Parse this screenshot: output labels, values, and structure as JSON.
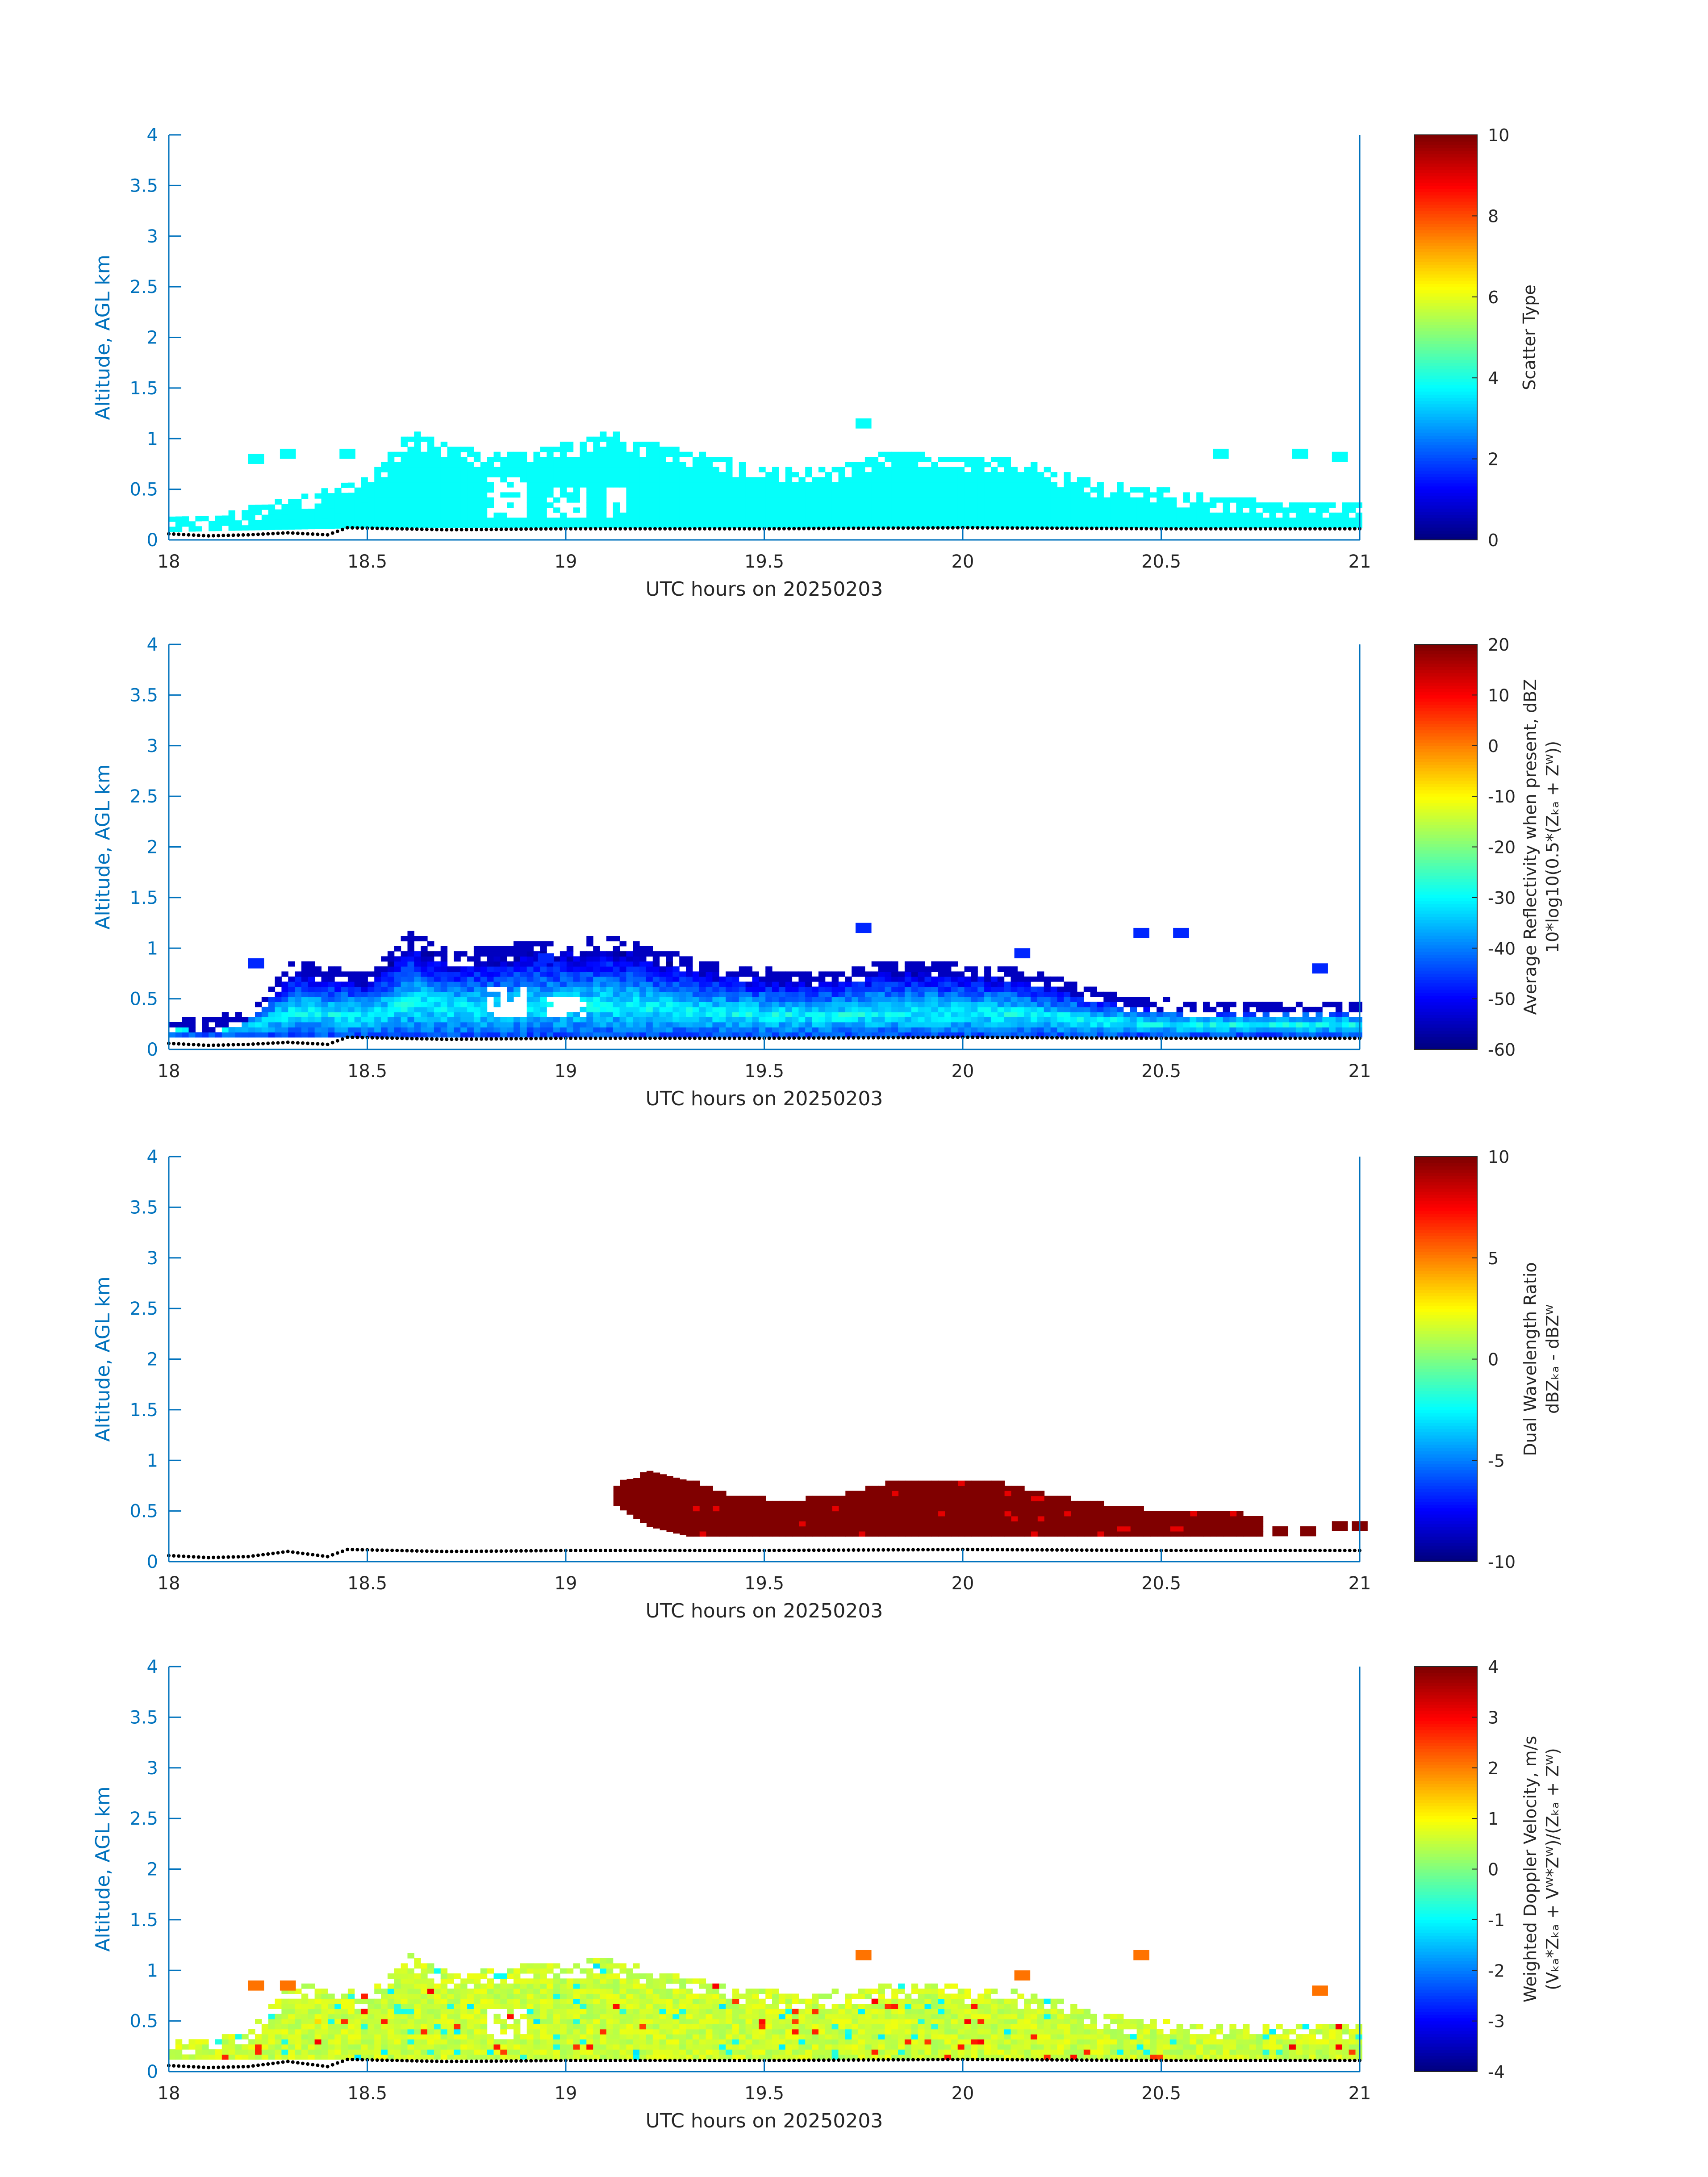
{
  "colors": {
    "axis": "#0072bd",
    "tick_text": "#0072bd",
    "label_text": "#262626",
    "ground_dots": "#000000",
    "colormap": "jet"
  },
  "chart_data": [
    {
      "type": "heatmap",
      "panel": "scatter-type",
      "xlabel": "UTC hours on 20250203",
      "ylabel": "Altitude, AGL km",
      "xlim": [
        18,
        21
      ],
      "ylim": [
        0,
        4
      ],
      "xticks": [
        "18",
        "18.5",
        "19",
        "19.5",
        "20",
        "20.5",
        "21"
      ],
      "yticks": [
        "0",
        "0.5",
        "1",
        "1.5",
        "2",
        "2.5",
        "3",
        "3.5",
        "4"
      ],
      "colorbar": {
        "label_lines": [
          "Scatter Type"
        ],
        "clim": [
          0,
          10
        ],
        "ticks": [
          "0",
          "2",
          "4",
          "6",
          "8",
          "10"
        ]
      },
      "field": {
        "mode": "constant",
        "value": 3.8,
        "note_value_units": "scatter type",
        "envelope_top": [
          [
            18.0,
            0.22
          ],
          [
            18.1,
            0.2
          ],
          [
            18.2,
            0.3
          ],
          [
            18.3,
            0.4
          ],
          [
            18.4,
            0.48
          ],
          [
            18.5,
            0.6
          ],
          [
            18.6,
            1.05
          ],
          [
            18.7,
            0.9
          ],
          [
            18.8,
            0.85
          ],
          [
            18.9,
            0.85
          ],
          [
            19.0,
            0.95
          ],
          [
            19.1,
            1.05
          ],
          [
            19.2,
            0.95
          ],
          [
            19.3,
            0.85
          ],
          [
            19.4,
            0.78
          ],
          [
            19.5,
            0.72
          ],
          [
            19.6,
            0.7
          ],
          [
            19.7,
            0.72
          ],
          [
            19.8,
            0.85
          ],
          [
            19.9,
            0.85
          ],
          [
            20.0,
            0.8
          ],
          [
            20.1,
            0.78
          ],
          [
            20.2,
            0.7
          ],
          [
            20.3,
            0.58
          ],
          [
            20.4,
            0.52
          ],
          [
            20.5,
            0.48
          ],
          [
            20.6,
            0.42
          ],
          [
            20.7,
            0.38
          ],
          [
            20.8,
            0.35
          ],
          [
            20.9,
            0.35
          ],
          [
            21.0,
            0.35
          ]
        ],
        "envelope_bottom": [
          [
            18.0,
            0.08
          ],
          [
            18.5,
            0.12
          ],
          [
            19.0,
            0.12
          ],
          [
            19.5,
            0.12
          ],
          [
            20.0,
            0.12
          ],
          [
            20.5,
            0.12
          ],
          [
            21.0,
            0.12
          ]
        ],
        "isolated_patches": [
          [
            19.75,
            1.15
          ],
          [
            18.22,
            0.8
          ],
          [
            18.3,
            0.85
          ],
          [
            18.45,
            0.85
          ],
          [
            20.65,
            0.85
          ],
          [
            20.85,
            0.85
          ],
          [
            20.95,
            0.82
          ]
        ],
        "gap_regions": [
          [
            18.8,
            18.9,
            0.2,
            0.6
          ],
          [
            18.95,
            19.05,
            0.2,
            0.5
          ],
          [
            19.1,
            19.15,
            0.2,
            0.5
          ]
        ]
      },
      "ground_dots_altitude": [
        [
          18.0,
          0.06
        ],
        [
          18.1,
          0.04
        ],
        [
          18.2,
          0.05
        ],
        [
          18.3,
          0.07
        ],
        [
          18.4,
          0.05
        ],
        [
          18.45,
          0.12
        ],
        [
          18.7,
          0.1
        ],
        [
          19.0,
          0.11
        ],
        [
          19.5,
          0.11
        ],
        [
          20.0,
          0.12
        ],
        [
          20.5,
          0.11
        ],
        [
          21.0,
          0.11
        ]
      ]
    },
    {
      "type": "heatmap",
      "panel": "average-reflectivity",
      "xlabel": "UTC hours on 20250203",
      "ylabel": "Altitude, AGL km",
      "xlim": [
        18,
        21
      ],
      "ylim": [
        0,
        4
      ],
      "xticks": [
        "18",
        "18.5",
        "19",
        "19.5",
        "20",
        "20.5",
        "21"
      ],
      "yticks": [
        "0",
        "0.5",
        "1",
        "1.5",
        "2",
        "2.5",
        "3",
        "3.5",
        "4"
      ],
      "colorbar": {
        "label_lines": [
          "Average Reflectivity when present, dBZ",
          "10*log10(0.5*(Zₖₐ + Zᵂ))"
        ],
        "clim": [
          -60,
          20
        ],
        "ticks": [
          "-60",
          "-50",
          "-40",
          "-30",
          "-20",
          "-10",
          "0",
          "10",
          "20"
        ]
      },
      "field": {
        "mode": "gradient",
        "low_value": -55,
        "mid_value": -35,
        "peak_value": -30,
        "note_value_units": "dBZ",
        "envelope_top": [
          [
            18.0,
            0.3
          ],
          [
            18.1,
            0.28
          ],
          [
            18.2,
            0.4
          ],
          [
            18.3,
            0.85
          ],
          [
            18.4,
            0.8
          ],
          [
            18.5,
            0.75
          ],
          [
            18.6,
            1.15
          ],
          [
            18.7,
            0.95
          ],
          [
            18.8,
            0.98
          ],
          [
            18.9,
            1.05
          ],
          [
            19.0,
            1.05
          ],
          [
            19.1,
            1.1
          ],
          [
            19.2,
            1.0
          ],
          [
            19.3,
            0.9
          ],
          [
            19.4,
            0.82
          ],
          [
            19.5,
            0.78
          ],
          [
            19.6,
            0.75
          ],
          [
            19.7,
            0.78
          ],
          [
            19.8,
            0.85
          ],
          [
            19.9,
            0.85
          ],
          [
            20.0,
            0.82
          ],
          [
            20.1,
            0.8
          ],
          [
            20.2,
            0.72
          ],
          [
            20.3,
            0.6
          ],
          [
            20.4,
            0.52
          ],
          [
            20.5,
            0.48
          ],
          [
            20.6,
            0.45
          ],
          [
            20.7,
            0.45
          ],
          [
            20.8,
            0.45
          ],
          [
            20.9,
            0.45
          ],
          [
            21.0,
            0.45
          ]
        ],
        "envelope_bottom": [
          [
            18.0,
            0.12
          ],
          [
            18.5,
            0.12
          ],
          [
            19.0,
            0.12
          ],
          [
            19.5,
            0.12
          ],
          [
            20.0,
            0.12
          ],
          [
            20.5,
            0.12
          ],
          [
            21.0,
            0.12
          ]
        ],
        "isolated_patches": [
          [
            19.75,
            1.2
          ],
          [
            18.22,
            0.85
          ],
          [
            18.95,
            0.9
          ],
          [
            20.15,
            0.95
          ],
          [
            20.45,
            1.15
          ],
          [
            20.55,
            1.15
          ],
          [
            20.9,
            0.8
          ]
        ],
        "gap_regions": [
          [
            18.8,
            18.9,
            0.3,
            0.6
          ],
          [
            18.95,
            19.05,
            0.3,
            0.5
          ]
        ]
      },
      "ground_dots_altitude": [
        [
          18.0,
          0.06
        ],
        [
          18.1,
          0.04
        ],
        [
          18.2,
          0.05
        ],
        [
          18.3,
          0.07
        ],
        [
          18.4,
          0.05
        ],
        [
          18.45,
          0.12
        ],
        [
          18.7,
          0.1
        ],
        [
          19.0,
          0.11
        ],
        [
          19.5,
          0.11
        ],
        [
          20.0,
          0.12
        ],
        [
          20.5,
          0.11
        ],
        [
          21.0,
          0.11
        ]
      ]
    },
    {
      "type": "heatmap",
      "panel": "dual-wavelength-ratio",
      "xlabel": "UTC hours on 20250203",
      "ylabel": "Altitude, AGL km",
      "xlim": [
        18,
        21
      ],
      "ylim": [
        0,
        4
      ],
      "xticks": [
        "18",
        "18.5",
        "19",
        "19.5",
        "20",
        "20.5",
        "21"
      ],
      "yticks": [
        "0",
        "0.5",
        "1",
        "1.5",
        "2",
        "2.5",
        "3",
        "3.5",
        "4"
      ],
      "colorbar": {
        "label_lines": [
          "Dual Wavelength Ratio",
          "dBZₖₐ - dBZᵂ"
        ],
        "clim": [
          -10,
          10
        ],
        "ticks": [
          "-10",
          "-5",
          "0",
          "5",
          "10"
        ]
      },
      "field": {
        "mode": "constant",
        "value": 10,
        "note_value_units": "dB",
        "envelope_top": [
          [
            19.12,
            0.75
          ],
          [
            19.2,
            0.85
          ],
          [
            19.3,
            0.8
          ],
          [
            19.4,
            0.65
          ],
          [
            19.5,
            0.6
          ],
          [
            19.6,
            0.6
          ],
          [
            19.7,
            0.65
          ],
          [
            19.8,
            0.75
          ],
          [
            19.9,
            0.8
          ],
          [
            20.0,
            0.8
          ],
          [
            20.1,
            0.75
          ],
          [
            20.2,
            0.65
          ],
          [
            20.3,
            0.58
          ],
          [
            20.4,
            0.52
          ],
          [
            20.5,
            0.48
          ],
          [
            20.6,
            0.45
          ],
          [
            20.7,
            0.45
          ],
          [
            20.75,
            0.4
          ]
        ],
        "envelope_bottom": [
          [
            19.12,
            0.55
          ],
          [
            19.2,
            0.35
          ],
          [
            19.3,
            0.25
          ],
          [
            19.5,
            0.25
          ],
          [
            20.0,
            0.25
          ],
          [
            20.5,
            0.25
          ],
          [
            20.75,
            0.25
          ]
        ],
        "isolated_patches": [
          [
            20.8,
            0.3
          ],
          [
            20.87,
            0.3
          ],
          [
            20.95,
            0.35
          ],
          [
            21.0,
            0.35
          ]
        ],
        "gap_regions": []
      },
      "ground_dots_altitude": [
        [
          18.0,
          0.06
        ],
        [
          18.1,
          0.04
        ],
        [
          18.2,
          0.05
        ],
        [
          18.3,
          0.1
        ],
        [
          18.4,
          0.05
        ],
        [
          18.45,
          0.12
        ],
        [
          18.7,
          0.1
        ],
        [
          19.0,
          0.11
        ],
        [
          19.5,
          0.11
        ],
        [
          20.0,
          0.12
        ],
        [
          20.5,
          0.11
        ],
        [
          21.0,
          0.11
        ]
      ]
    },
    {
      "type": "heatmap",
      "panel": "weighted-doppler-velocity",
      "xlabel": "UTC hours on 20250203",
      "ylabel": "Altitude, AGL km",
      "xlim": [
        18,
        21
      ],
      "ylim": [
        0,
        4
      ],
      "xticks": [
        "18",
        "18.5",
        "19",
        "19.5",
        "20",
        "20.5",
        "21"
      ],
      "yticks": [
        "0",
        "0.5",
        "1",
        "1.5",
        "2",
        "2.5",
        "3",
        "3.5",
        "4"
      ],
      "colorbar": {
        "label_lines": [
          "Weighted Doppler Velocity, m/s",
          "(Vₖₐ*Zₖₐ + Vᵂ*Zᵂ)/(Zₖₐ + Zᵂ)"
        ],
        "clim": [
          -4,
          4
        ],
        "ticks": [
          "-4",
          "-3",
          "-2",
          "-1",
          "0",
          "1",
          "2",
          "3",
          "4"
        ]
      },
      "field": {
        "mode": "speckle",
        "low_value": 0.3,
        "peak_value": 0.9,
        "note_value_units": "m/s",
        "envelope_top": [
          [
            18.0,
            0.3
          ],
          [
            18.1,
            0.28
          ],
          [
            18.2,
            0.4
          ],
          [
            18.3,
            0.85
          ],
          [
            18.4,
            0.8
          ],
          [
            18.5,
            0.75
          ],
          [
            18.6,
            1.15
          ],
          [
            18.7,
            0.95
          ],
          [
            18.8,
            0.98
          ],
          [
            18.9,
            1.05
          ],
          [
            19.0,
            1.05
          ],
          [
            19.1,
            1.1
          ],
          [
            19.2,
            1.0
          ],
          [
            19.3,
            0.9
          ],
          [
            19.4,
            0.82
          ],
          [
            19.5,
            0.78
          ],
          [
            19.6,
            0.75
          ],
          [
            19.7,
            0.78
          ],
          [
            19.8,
            0.85
          ],
          [
            19.9,
            0.85
          ],
          [
            20.0,
            0.82
          ],
          [
            20.1,
            0.8
          ],
          [
            20.2,
            0.72
          ],
          [
            20.3,
            0.6
          ],
          [
            20.4,
            0.52
          ],
          [
            20.5,
            0.48
          ],
          [
            20.6,
            0.45
          ],
          [
            20.7,
            0.45
          ],
          [
            20.8,
            0.45
          ],
          [
            20.9,
            0.45
          ],
          [
            21.0,
            0.45
          ]
        ],
        "envelope_bottom": [
          [
            18.0,
            0.12
          ],
          [
            18.5,
            0.12
          ],
          [
            19.0,
            0.12
          ],
          [
            19.5,
            0.12
          ],
          [
            20.0,
            0.12
          ],
          [
            20.5,
            0.12
          ],
          [
            21.0,
            0.12
          ]
        ],
        "isolated_patches": [
          [
            19.75,
            1.15
          ],
          [
            18.22,
            0.85
          ],
          [
            18.3,
            0.85
          ],
          [
            20.15,
            0.95
          ],
          [
            20.45,
            1.15
          ],
          [
            20.9,
            0.8
          ]
        ],
        "gap_regions": [
          [
            18.8,
            18.9,
            0.3,
            0.6
          ]
        ]
      },
      "ground_dots_altitude": [
        [
          18.0,
          0.06
        ],
        [
          18.1,
          0.04
        ],
        [
          18.2,
          0.05
        ],
        [
          18.3,
          0.1
        ],
        [
          18.4,
          0.05
        ],
        [
          18.45,
          0.12
        ],
        [
          18.7,
          0.1
        ],
        [
          19.0,
          0.11
        ],
        [
          19.5,
          0.11
        ],
        [
          20.0,
          0.12
        ],
        [
          20.5,
          0.11
        ],
        [
          21.0,
          0.11
        ]
      ]
    }
  ]
}
